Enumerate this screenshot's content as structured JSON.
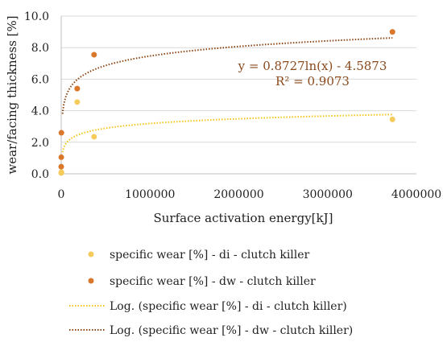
{
  "chart_data": {
    "type": "scatter",
    "xlabel": "Surface activation energy[kJ]",
    "ylabel": "wear/facing thickness [%]",
    "xlim": [
      0,
      4000000
    ],
    "ylim": [
      0,
      10
    ],
    "x_ticks": [
      "0",
      "1000000",
      "2000000",
      "3000000",
      "4000000"
    ],
    "y_ticks": [
      "0.0",
      "2.0",
      "4.0",
      "6.0",
      "8.0",
      "10.0"
    ],
    "grid": "horizontal",
    "legend_position": "bottom",
    "colors": {
      "di": "#f5cb5c",
      "dw": "#d9772b",
      "di_trend": "#f5c518",
      "dw_trend": "#8b4513"
    },
    "series": [
      {
        "name": "specific wear [%] - di - clutch killer",
        "points": [
          [
            0,
            0.05
          ],
          [
            2000,
            0.1
          ],
          [
            180000,
            4.55
          ],
          [
            370000,
            2.35
          ],
          [
            3730000,
            3.45
          ]
        ]
      },
      {
        "name": "specific wear [%] - dw - clutch killer",
        "points": [
          [
            0,
            0.45
          ],
          [
            1000,
            1.05
          ],
          [
            2000,
            2.6
          ],
          [
            180000,
            5.4
          ],
          [
            370000,
            7.55
          ],
          [
            3730000,
            9.0
          ]
        ]
      }
    ],
    "trendlines": [
      {
        "name": "Log. (specific wear [%] - di - clutch killer)",
        "slope": 0.4335,
        "intercept": -2.8
      },
      {
        "name": "Log. (specific wear [%] - dw - clutch killer)",
        "slope": 0.8727,
        "intercept": -4.5873,
        "equation": "y = 0.8727ln(x) - 4.5873",
        "r2": "R² = 0.9073"
      }
    ]
  }
}
